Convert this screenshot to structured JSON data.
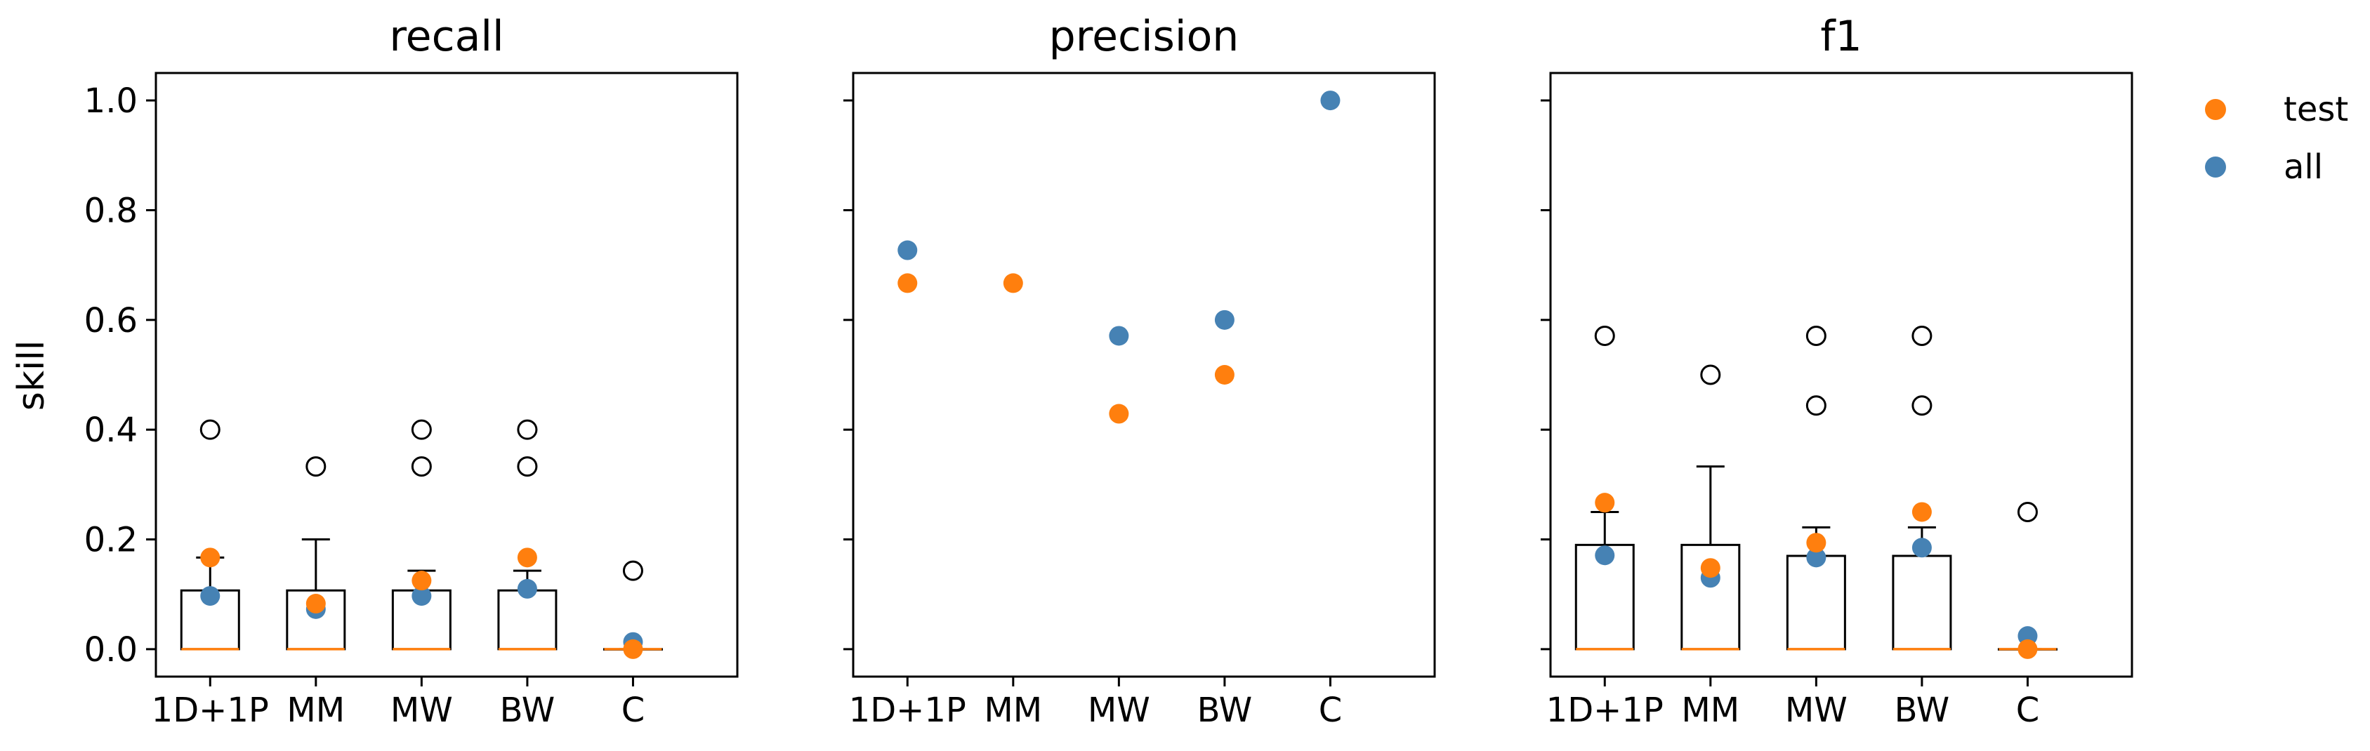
{
  "figure": {
    "ylabel": "skill",
    "legend": {
      "placement": "upper-right-outside",
      "entries": [
        {
          "label": "test",
          "color": "#ff7f0e"
        },
        {
          "label": "all",
          "color": "#4682b4"
        }
      ]
    }
  },
  "chart_data": [
    {
      "type": "box",
      "title": "recall",
      "categories": [
        "1D+1P",
        "MM",
        "MW",
        "BW",
        "C"
      ],
      "ylim": [
        -0.05,
        1.05
      ],
      "yticks": [
        "0.0",
        "0.2",
        "0.4",
        "0.6",
        "0.8",
        "1.0"
      ],
      "boxes": [
        {
          "q1": 0.0,
          "median": 0.0,
          "q3": 0.107,
          "whisker_low": 0.0,
          "whisker_high": 0.167,
          "fliers": [
            0.4
          ]
        },
        {
          "q1": 0.0,
          "median": 0.0,
          "q3": 0.107,
          "whisker_low": 0.0,
          "whisker_high": 0.2,
          "fliers": [
            0.333
          ]
        },
        {
          "q1": 0.0,
          "median": 0.0,
          "q3": 0.107,
          "whisker_low": 0.0,
          "whisker_high": 0.143,
          "fliers": [
            0.333,
            0.4
          ]
        },
        {
          "q1": 0.0,
          "median": 0.0,
          "q3": 0.107,
          "whisker_low": 0.0,
          "whisker_high": 0.143,
          "fliers": [
            0.333,
            0.4
          ]
        },
        {
          "q1": 0.0,
          "median": 0.0,
          "q3": 0.0,
          "whisker_low": 0.0,
          "whisker_high": 0.0,
          "fliers": [
            0.143
          ]
        }
      ],
      "series": [
        {
          "name": "test",
          "values": [
            0.167,
            0.083,
            0.125,
            0.167,
            0.0
          ]
        },
        {
          "name": "all",
          "values": [
            0.097,
            0.073,
            0.097,
            0.11,
            0.013
          ]
        }
      ]
    },
    {
      "type": "scatter",
      "title": "precision",
      "categories": [
        "1D+1P",
        "MM",
        "MW",
        "BW",
        "C"
      ],
      "ylim": [
        -0.05,
        1.05
      ],
      "series": [
        {
          "name": "test",
          "values": [
            0.667,
            0.667,
            0.429,
            0.5,
            null
          ]
        },
        {
          "name": "all",
          "values": [
            0.727,
            null,
            0.571,
            0.6,
            1.0
          ]
        }
      ]
    },
    {
      "type": "box",
      "title": "f1",
      "categories": [
        "1D+1P",
        "MM",
        "MW",
        "BW",
        "C"
      ],
      "ylim": [
        -0.05,
        1.05
      ],
      "boxes": [
        {
          "q1": 0.0,
          "median": 0.0,
          "q3": 0.19,
          "whisker_low": 0.0,
          "whisker_high": 0.25,
          "fliers": [
            0.571
          ]
        },
        {
          "q1": 0.0,
          "median": 0.0,
          "q3": 0.19,
          "whisker_low": 0.0,
          "whisker_high": 0.333,
          "fliers": [
            0.5
          ]
        },
        {
          "q1": 0.0,
          "median": 0.0,
          "q3": 0.17,
          "whisker_low": 0.0,
          "whisker_high": 0.222,
          "fliers": [
            0.444,
            0.571
          ]
        },
        {
          "q1": 0.0,
          "median": 0.0,
          "q3": 0.17,
          "whisker_low": 0.0,
          "whisker_high": 0.222,
          "fliers": [
            0.444,
            0.571
          ]
        },
        {
          "q1": 0.0,
          "median": 0.0,
          "q3": 0.0,
          "whisker_low": 0.0,
          "whisker_high": 0.0,
          "fliers": [
            0.25
          ]
        }
      ],
      "series": [
        {
          "name": "test",
          "values": [
            0.267,
            0.148,
            0.194,
            0.25,
            0.0
          ]
        },
        {
          "name": "all",
          "values": [
            0.171,
            0.13,
            0.167,
            0.185,
            0.024
          ]
        }
      ]
    }
  ]
}
